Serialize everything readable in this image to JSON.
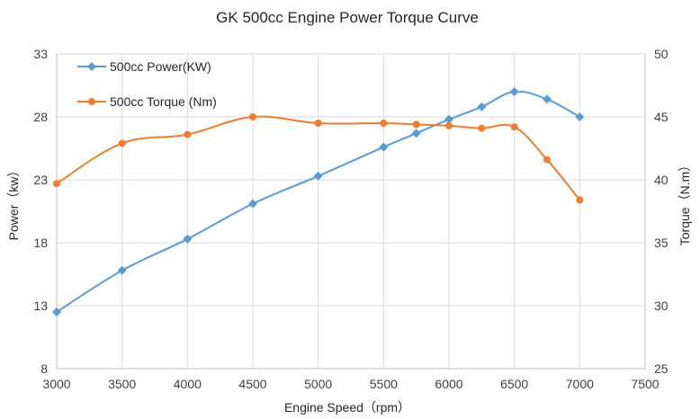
{
  "chart_data": {
    "type": "line",
    "title": "GK 500cc Engine Power Torque Curve",
    "xlabel": "Engine Speed（rpm）",
    "ylabel_left": "Power（kw）",
    "ylabel_right": "Torque（N.m）",
    "x_ticks": [
      "3000",
      "3500",
      "4000",
      "4500",
      "5000",
      "5500",
      "6000",
      "6500",
      "7000",
      "7500"
    ],
    "y_left_ticks": [
      "8",
      "13",
      "18",
      "23",
      "28",
      "33"
    ],
    "y_right_ticks": [
      "25",
      "30",
      "35",
      "40",
      "45",
      "50"
    ],
    "xlim": [
      3000,
      7500
    ],
    "ylim_left": [
      8,
      33
    ],
    "ylim_right": [
      25,
      50
    ],
    "grid": true,
    "legend_position": "top-left",
    "series": [
      {
        "name": "500cc Power(KW)",
        "axis": "left",
        "color": "#5B9BD5",
        "marker": "diamond",
        "x": [
          3000,
          3500,
          4000,
          4500,
          5000,
          5500,
          5750,
          6000,
          6250,
          6500,
          6750,
          7000
        ],
        "y": [
          12.5,
          15.8,
          18.3,
          21.1,
          23.3,
          25.6,
          26.7,
          27.8,
          28.8,
          30.0,
          29.4,
          28.0
        ]
      },
      {
        "name": "500cc Torque (Nm)",
        "axis": "right",
        "color": "#ED7D31",
        "marker": "circle",
        "x": [
          3000,
          3500,
          4000,
          4500,
          5000,
          5500,
          5750,
          6000,
          6250,
          6500,
          6750,
          7000
        ],
        "y": [
          39.7,
          42.9,
          43.6,
          45.0,
          44.5,
          44.5,
          44.4,
          44.3,
          44.1,
          44.2,
          41.6,
          38.4
        ]
      }
    ]
  }
}
